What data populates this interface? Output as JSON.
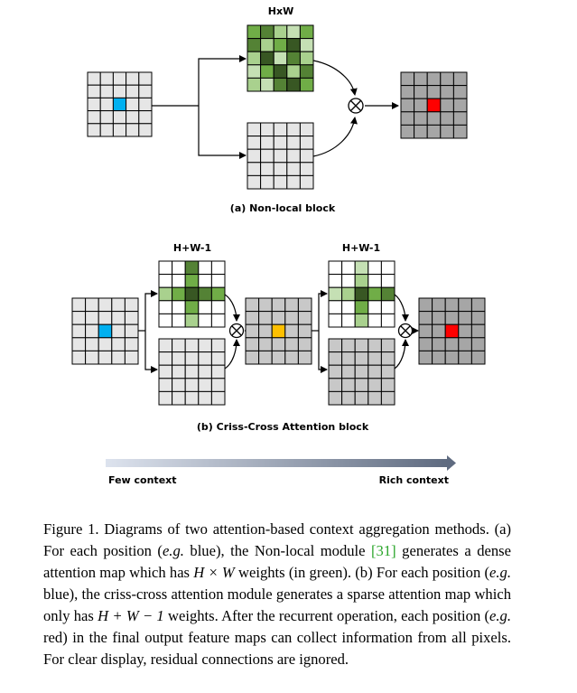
{
  "figure": {
    "title_hw": "HxW",
    "caption_a": "(a) Non-local block",
    "title_hw1_left": "H+W-1",
    "title_hw1_right": "H+W-1",
    "caption_b": "(b) Criss-Cross Attention block",
    "few_context": "Few context",
    "rich_context": "Rich context",
    "colors": {
      "grid_light": "#e6e6e6",
      "grid_medium": "#c8c8c8",
      "grid_dark": "#a6a6a6",
      "blue": "#00b0f0",
      "red": "#ff0000",
      "orange": "#ffc000",
      "green_1": "#385723",
      "green_2": "#548235",
      "green_3": "#70ad47",
      "green_4": "#a9d18e",
      "green_5": "#c5e0b4"
    }
  },
  "caption": {
    "fig_label": "Figure 1.",
    "text_1": " Diagrams of two attention-based context aggregation methods. (a) For each position (",
    "eg_1": "e.g.",
    "text_2": " blue), the Non-local module ",
    "ref": "[31]",
    "text_3": " generates a dense attention map which has ",
    "math_hw": "H × W",
    "text_4": " weights (in green). (b) For each position (",
    "eg_2": "e.g.",
    "text_5": " blue), the criss-cross attention module generates a sparse attention map which only has ",
    "math_hw1": "H + W − 1",
    "text_6": " weights. After the recurrent operation, each position (",
    "eg_3": "e.g.",
    "text_7": " red) in the final output feature maps can collect information from all pixels. For clear display, residual connections are ignored."
  }
}
